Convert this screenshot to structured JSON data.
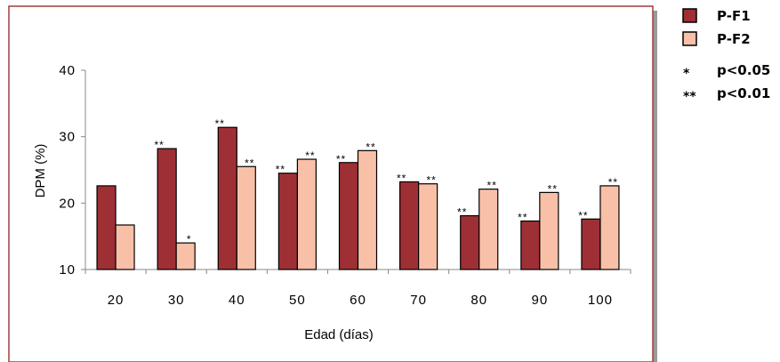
{
  "chart_data": {
    "type": "bar",
    "title": "",
    "xlabel": "Edad (días)",
    "ylabel": "DPM (%)",
    "ylim": [
      10,
      40
    ],
    "yticks": [
      10,
      20,
      30,
      40
    ],
    "categories": [
      "20",
      "30",
      "40",
      "50",
      "60",
      "70",
      "80",
      "90",
      "100"
    ],
    "series": [
      {
        "name": "P-F1",
        "color": "#9e3035",
        "values": [
          22.6,
          28.2,
          31.4,
          24.5,
          26.1,
          23.2,
          18.1,
          17.3,
          17.6
        ],
        "significance": [
          "",
          "**",
          "**",
          "**",
          "**",
          "**",
          "**",
          "**",
          "**"
        ]
      },
      {
        "name": "P-F2",
        "color": "#f9c0a8",
        "values": [
          16.7,
          14.0,
          25.5,
          26.6,
          27.9,
          22.9,
          22.1,
          21.6,
          22.6
        ],
        "significance": [
          "",
          "*",
          "**",
          "**",
          "**",
          "**",
          "**",
          "**",
          "**"
        ]
      }
    ],
    "legend": {
      "position": "right",
      "series": [
        "P-F1",
        "P-F2"
      ],
      "notes": [
        {
          "symbol": "*",
          "label": "p<0.05"
        },
        {
          "symbol": "**",
          "label": "p<0.01"
        }
      ]
    },
    "grid": false
  },
  "style": {
    "frame_color": "#a23c3c",
    "bar_stroke": "#000000"
  }
}
